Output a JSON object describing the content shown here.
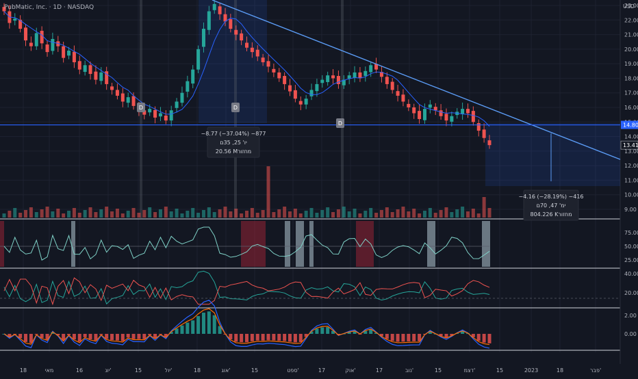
{
  "header": {
    "symbol_line": "PubMatic, Inc. · 1D · NASDAQ"
  },
  "price_axis": {
    "currency": "USD",
    "ticks": [
      "23.00",
      "22.00",
      "21.00",
      "20.00",
      "19.00",
      "18.00",
      "17.00",
      "16.00",
      "15.00",
      "14.00",
      "13.00",
      "12.00",
      "11.00",
      "10.00",
      "9.00"
    ],
    "tick_values": [
      23,
      22,
      21,
      20,
      19,
      18,
      17,
      16,
      15,
      14,
      13,
      12,
      11,
      10,
      9
    ],
    "hline_label": "14.80",
    "hline_value": 14.8,
    "last_price_label": "13.41",
    "last_price_value": 13.41
  },
  "time_axis": {
    "labels": [
      "18",
      "מאי",
      "16",
      "יונ'",
      "15",
      "יול'",
      "18",
      "אוג'",
      "15",
      "ספט'",
      "17",
      "אוק'",
      "17",
      "נוב'",
      "15",
      "דצמ'",
      "15",
      "2023",
      "18",
      "פבר'"
    ]
  },
  "markers": [
    "D",
    "D",
    "D"
  ],
  "measure_boxes": [
    {
      "lines": [
        "−8.77 (−37.04%) −877",
        "יו' 25, 35ם",
        "20.56 Mמחזור"
      ]
    },
    {
      "lines": [
        "−4.16 (−28.19%) −416",
        "ימ' 47, 70ם",
        "804.226 Kמחזור"
      ]
    }
  ],
  "rsi_pane": {
    "ticks": [
      "75.00",
      "50.00",
      "25.00"
    ],
    "tick_values": [
      75,
      50,
      25
    ]
  },
  "dmi_pane": {
    "ticks": [
      "40.00",
      "20.00"
    ],
    "tick_values": [
      40,
      20
    ]
  },
  "macd_pane": {
    "ticks": [
      "2.00",
      "0.00"
    ],
    "tick_values": [
      2,
      0
    ]
  },
  "colors": {
    "background": "#131722",
    "up": "#26a69a",
    "down": "#ef5350",
    "ma": "#2962ff",
    "trendline": "#5b9cf6",
    "hline": "#2962ff",
    "rsi": "#7fd1c7",
    "dmi_plus": "#26a69a",
    "dmi_minus": "#ef5350",
    "macd": "#2962ff",
    "signal": "#ff6d00"
  },
  "chart_data": {
    "type": "candlestick",
    "ylim": [
      8.5,
      23.5
    ],
    "series": [
      {
        "name": "",
        "values": [
          22.6,
          21.8,
          22.1,
          21.4,
          20.6,
          20.2,
          21.1,
          20.4,
          19.8,
          20.7,
          20.2,
          19.4,
          19.9,
          19.1,
          18.6,
          18.9,
          18.3,
          17.9,
          18.4,
          17.6,
          17.2,
          16.8,
          16.4,
          16.7,
          16.1,
          15.8,
          15.5,
          15.9,
          15.3,
          15.6,
          15.1,
          15.8,
          16.4,
          17.0,
          17.8,
          18.6,
          20.0,
          21.4,
          22.6,
          23.1,
          22.4,
          21.9,
          21.4,
          21.0,
          20.6,
          20.1,
          19.8,
          19.5,
          19.1,
          18.8,
          18.4,
          18.0,
          17.6,
          17.1,
          16.6,
          16.2,
          16.6,
          17.2,
          17.6,
          17.9,
          18.2,
          18.0,
          17.6,
          17.9,
          18.2,
          18.4,
          18.0,
          18.5,
          18.9,
          18.6,
          18.1,
          17.6,
          17.2,
          16.8,
          16.4,
          16.0,
          15.6,
          15.2,
          15.9,
          16.2,
          15.8,
          15.4,
          15.1,
          15.4,
          15.7,
          15.9,
          15.6,
          15.0,
          14.4,
          13.9,
          13.41
        ]
      }
    ]
  }
}
